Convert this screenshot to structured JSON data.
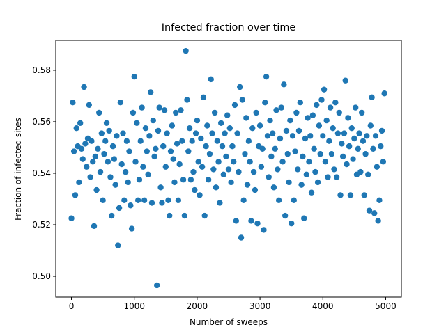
{
  "chart_data": {
    "type": "scatter",
    "title": "Infected fraction over time",
    "xlabel": "Number of sweeps",
    "ylabel": "Fraction of infected sites",
    "color": "#1f77b4",
    "xlim": [
      -250,
      5250
    ],
    "ylim": [
      0.4919,
      0.5916
    ],
    "xticks": [
      0,
      1000,
      2000,
      3000,
      4000,
      5000
    ],
    "yticks": [
      {
        "value": 0.5,
        "label": "0.50"
      },
      0.52,
      0.54,
      0.56,
      0.58
    ],
    "x": [
      0,
      20,
      40,
      60,
      80,
      100,
      120,
      140,
      160,
      180,
      200,
      220,
      240,
      260,
      280,
      300,
      320,
      340,
      360,
      380,
      400,
      420,
      440,
      460,
      480,
      500,
      520,
      540,
      560,
      580,
      600,
      620,
      640,
      660,
      680,
      700,
      720,
      740,
      760,
      780,
      800,
      820,
      840,
      860,
      880,
      900,
      920,
      940,
      960,
      980,
      1000,
      1020,
      1040,
      1060,
      1080,
      1100,
      1120,
      1140,
      1160,
      1180,
      1200,
      1220,
      1240,
      1260,
      1280,
      1300,
      1320,
      1340,
      1360,
      1380,
      1400,
      1420,
      1440,
      1460,
      1480,
      1500,
      1520,
      1540,
      1560,
      1580,
      1600,
      1620,
      1640,
      1660,
      1680,
      1700,
      1720,
      1740,
      1760,
      1780,
      1800,
      1820,
      1840,
      1860,
      1880,
      1900,
      1920,
      1940,
      1960,
      1980,
      2000,
      2020,
      2040,
      2060,
      2080,
      2100,
      2120,
      2140,
      2160,
      2180,
      2200,
      2220,
      2240,
      2260,
      2280,
      2300,
      2320,
      2340,
      2360,
      2380,
      2400,
      2420,
      2440,
      2460,
      2480,
      2500,
      2520,
      2540,
      2560,
      2580,
      2600,
      2620,
      2640,
      2660,
      2680,
      2700,
      2720,
      2740,
      2760,
      2780,
      2800,
      2820,
      2840,
      2860,
      2880,
      2900,
      2920,
      2940,
      2960,
      2980,
      3000,
      3020,
      3040,
      3060,
      3080,
      3100,
      3120,
      3140,
      3160,
      3180,
      3200,
      3220,
      3240,
      3260,
      3280,
      3300,
      3320,
      3340,
      3360,
      3380,
      3400,
      3420,
      3440,
      3460,
      3480,
      3500,
      3520,
      3540,
      3560,
      3580,
      3600,
      3620,
      3640,
      3660,
      3680,
      3700,
      3720,
      3740,
      3760,
      3780,
      3800,
      3820,
      3840,
      3860,
      3880,
      3900,
      3920,
      3940,
      3960,
      3980,
      4000,
      4020,
      4040,
      4060,
      4080,
      4100,
      4120,
      4140,
      4160,
      4180,
      4200,
      4220,
      4240,
      4260,
      4280,
      4300,
      4320,
      4340,
      4360,
      4380,
      4400,
      4420,
      4440,
      4460,
      4480,
      4500,
      4520,
      4540,
      4560,
      4580,
      4600,
      4620,
      4640,
      4660,
      4680,
      4700,
      4720,
      4740,
      4760,
      4780,
      4800,
      4820,
      4840,
      4860,
      4880,
      4900,
      4920,
      4940,
      4960,
      4980
    ],
    "values": [
      0.5225,
      0.5675,
      0.5485,
      0.5315,
      0.5575,
      0.5505,
      0.5365,
      0.5595,
      0.5495,
      0.5455,
      0.5735,
      0.5515,
      0.5425,
      0.5535,
      0.5665,
      0.5385,
      0.5525,
      0.5445,
      0.5195,
      0.5465,
      0.5335,
      0.5495,
      0.5635,
      0.5405,
      0.5555,
      0.5295,
      0.5475,
      0.5525,
      0.5595,
      0.5445,
      0.5565,
      0.5385,
      0.5235,
      0.5505,
      0.5455,
      0.5355,
      0.5545,
      0.512,
      0.5265,
      0.5675,
      0.5435,
      0.5555,
      0.5295,
      0.5405,
      0.5525,
      0.5365,
      0.5485,
      0.5275,
      0.5185,
      0.5635,
      0.5775,
      0.5445,
      0.5595,
      0.5295,
      0.5375,
      0.5525,
      0.5655,
      0.5425,
      0.5295,
      0.5575,
      0.5485,
      0.5395,
      0.5545,
      0.5715,
      0.5285,
      0.5605,
      0.5465,
      0.5495,
      0.4965,
      0.5565,
      0.5655,
      0.5345,
      0.5285,
      0.5505,
      0.5645,
      0.5425,
      0.5555,
      0.5295,
      0.5235,
      0.5485,
      0.5585,
      0.5455,
      0.5365,
      0.5635,
      0.5515,
      0.5295,
      0.5435,
      0.5645,
      0.5525,
      0.5375,
      0.5235,
      0.5875,
      0.5685,
      0.5485,
      0.5575,
      0.5375,
      0.5525,
      0.5405,
      0.5335,
      0.5555,
      0.5605,
      0.5445,
      0.5315,
      0.5535,
      0.5425,
      0.5695,
      0.5235,
      0.5505,
      0.5585,
      0.5375,
      0.5475,
      0.5765,
      0.5555,
      0.5415,
      0.5635,
      0.5345,
      0.5525,
      0.5445,
      0.5285,
      0.5595,
      0.5505,
      0.5395,
      0.5555,
      0.5465,
      0.5625,
      0.5415,
      0.5575,
      0.5365,
      0.5505,
      0.5445,
      0.5665,
      0.5215,
      0.5555,
      0.5405,
      0.5735,
      0.515,
      0.5685,
      0.5295,
      0.5475,
      0.5615,
      0.5355,
      0.5525,
      0.5445,
      0.5215,
      0.5575,
      0.5405,
      0.5335,
      0.5635,
      0.5205,
      0.5505,
      0.5585,
      0.5425,
      0.5495,
      0.518,
      0.5675,
      0.5775,
      0.5545,
      0.5385,
      0.5605,
      0.5465,
      0.5555,
      0.5345,
      0.5495,
      0.5645,
      0.5415,
      0.5295,
      0.5535,
      0.5655,
      0.5445,
      0.5745,
      0.5235,
      0.5565,
      0.5475,
      0.5365,
      0.5605,
      0.5205,
      0.5545,
      0.5295,
      0.5485,
      0.5635,
      0.5415,
      0.5565,
      0.5675,
      0.5355,
      0.5465,
      0.5225,
      0.5535,
      0.5395,
      0.5615,
      0.5445,
      0.5545,
      0.5325,
      0.5625,
      0.5495,
      0.5405,
      0.5665,
      0.5365,
      0.5585,
      0.5475,
      0.5685,
      0.5545,
      0.5725,
      0.5445,
      0.5605,
      0.5385,
      0.5525,
      0.5655,
      0.5475,
      0.5575,
      0.5415,
      0.5675,
      0.5385,
      0.5555,
      0.5635,
      0.5315,
      0.5515,
      0.5465,
      0.5555,
      0.576,
      0.5435,
      0.5615,
      0.5505,
      0.5315,
      0.5575,
      0.5455,
      0.5535,
      0.5655,
      0.5395,
      0.5495,
      0.5555,
      0.5405,
      0.5635,
      0.5525,
      0.5315,
      0.5475,
      0.5545,
      0.5395,
      0.5255,
      0.5585,
      0.5695,
      0.5495,
      0.5245,
      0.5545,
      0.5425,
      0.5215,
      0.5295,
      0.5505,
      0.5565,
      0.5445,
      0.571
    ]
  }
}
